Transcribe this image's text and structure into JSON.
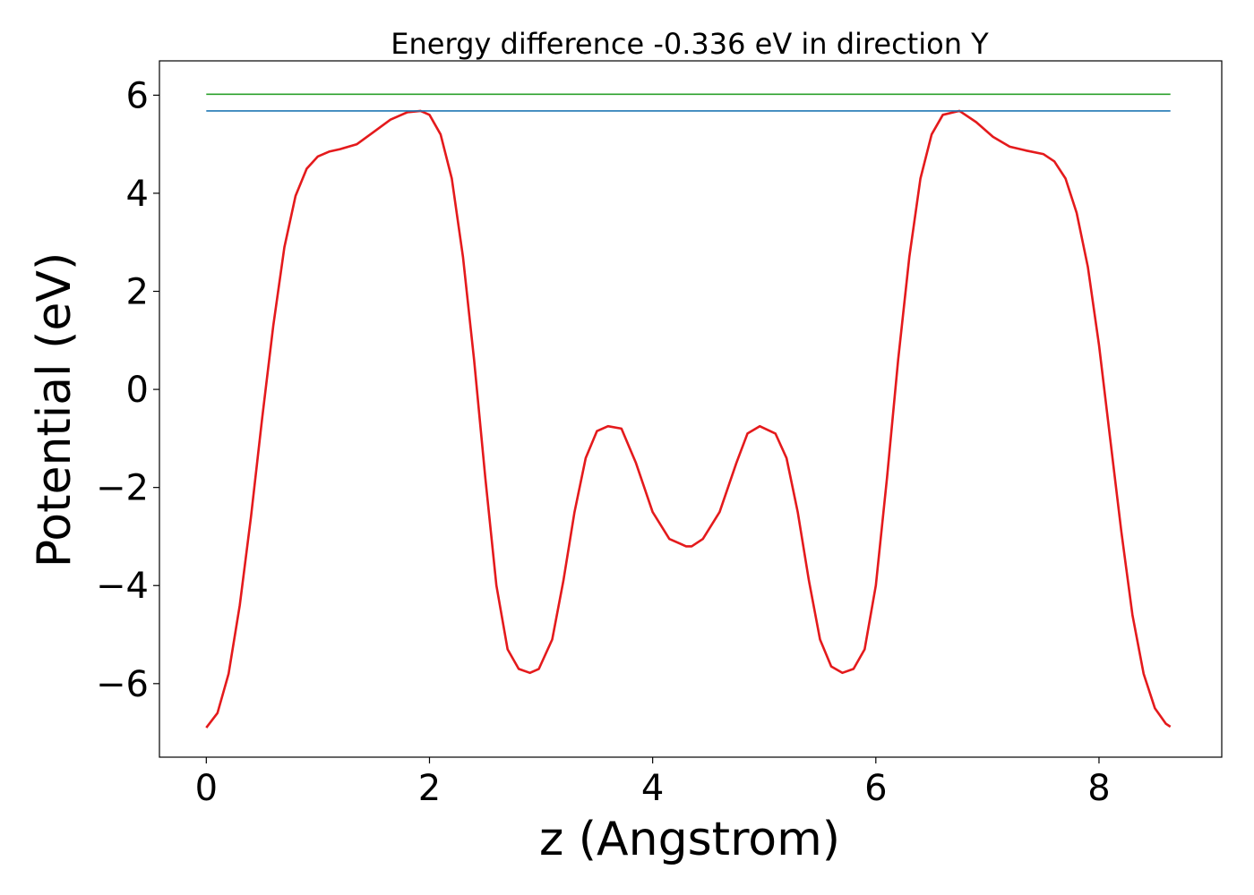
{
  "chart_data": {
    "type": "line",
    "title": "Energy difference -0.336 eV in direction Y",
    "xlabel": "z (Angstrom)",
    "ylabel": "Potential (eV)",
    "xlim": [
      -0.42,
      9.1
    ],
    "ylim": [
      -7.5,
      6.7
    ],
    "xticks": [
      0,
      2,
      4,
      6,
      8
    ],
    "xtick_labels": [
      "0",
      "2",
      "4",
      "6",
      "8"
    ],
    "yticks": [
      -6,
      -4,
      -2,
      0,
      2,
      4,
      6
    ],
    "ytick_labels": [
      "−6",
      "−4",
      "−2",
      "0",
      "2",
      "4",
      "6"
    ],
    "grid": false,
    "series": [
      {
        "color": "#e41a1c",
        "x": [
          0,
          0.1,
          0.2,
          0.3,
          0.4,
          0.5,
          0.6,
          0.7,
          0.8,
          0.9,
          1.0,
          1.1,
          1.2,
          1.35,
          1.5,
          1.65,
          1.8,
          1.92,
          2.0,
          2.1,
          2.2,
          2.3,
          2.4,
          2.5,
          2.6,
          2.7,
          2.8,
          2.9,
          2.98,
          3.1,
          3.2,
          3.3,
          3.4,
          3.5,
          3.6,
          3.72,
          3.85,
          4.0,
          4.15,
          4.3,
          4.35,
          4.45,
          4.6,
          4.75,
          4.85,
          4.96,
          5.1,
          5.2,
          5.3,
          5.4,
          5.5,
          5.6,
          5.7,
          5.8,
          5.9,
          6.0,
          6.1,
          6.2,
          6.3,
          6.4,
          6.5,
          6.6,
          6.75,
          6.9,
          7.05,
          7.2,
          7.35,
          7.5,
          7.6,
          7.7,
          7.8,
          7.9,
          8.0,
          8.1,
          8.2,
          8.3,
          8.4,
          8.5,
          8.6,
          8.64
        ],
        "values": [
          -6.9,
          -6.6,
          -5.8,
          -4.4,
          -2.6,
          -0.6,
          1.3,
          2.9,
          3.95,
          4.5,
          4.75,
          4.85,
          4.9,
          5.0,
          5.25,
          5.5,
          5.65,
          5.68,
          5.6,
          5.2,
          4.3,
          2.7,
          0.6,
          -1.8,
          -4.0,
          -5.3,
          -5.7,
          -5.78,
          -5.7,
          -5.1,
          -3.9,
          -2.5,
          -1.4,
          -0.85,
          -0.75,
          -0.8,
          -1.5,
          -2.5,
          -3.05,
          -3.2,
          -3.2,
          -3.05,
          -2.5,
          -1.5,
          -0.9,
          -0.75,
          -0.9,
          -1.4,
          -2.5,
          -3.9,
          -5.1,
          -5.65,
          -5.78,
          -5.7,
          -5.3,
          -4.0,
          -1.8,
          0.6,
          2.7,
          4.3,
          5.2,
          5.6,
          5.68,
          5.45,
          5.15,
          4.95,
          4.87,
          4.8,
          4.65,
          4.3,
          3.6,
          2.5,
          0.9,
          -1.0,
          -2.9,
          -4.6,
          -5.8,
          -6.5,
          -6.82,
          -6.88
        ]
      },
      {
        "color": "#1f77b4",
        "x": [
          0,
          8.64
        ],
        "values": [
          5.68,
          5.68
        ]
      },
      {
        "color": "#2ca02c",
        "x": [
          0,
          8.64
        ],
        "values": [
          6.02,
          6.02
        ]
      }
    ]
  }
}
